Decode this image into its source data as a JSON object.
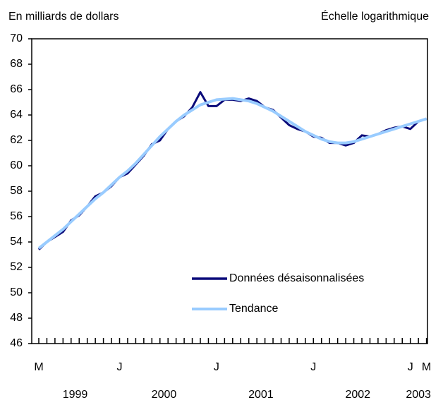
{
  "chart_data": {
    "type": "line",
    "y_label": "En milliards de dollars",
    "scale_note": "Échelle logarithmique",
    "categories": [
      "M",
      null,
      null,
      null,
      null,
      null,
      null,
      null,
      null,
      null,
      "J",
      null,
      null,
      null,
      null,
      null,
      null,
      null,
      null,
      null,
      null,
      null,
      "J",
      null,
      null,
      null,
      null,
      null,
      null,
      null,
      null,
      null,
      null,
      null,
      "J",
      null,
      null,
      null,
      null,
      null,
      null,
      null,
      null,
      null,
      null,
      null,
      "J",
      null,
      "M"
    ],
    "year_labels": [
      "1999",
      "2000",
      "2001",
      "2002",
      "2003"
    ],
    "series": [
      {
        "name": "Données désaisonnalisées",
        "color": "#0a0a7a",
        "values": [
          53.4,
          54.0,
          54.4,
          54.8,
          55.7,
          56.1,
          56.8,
          57.6,
          57.9,
          58.4,
          59.1,
          59.4,
          60.1,
          60.8,
          61.7,
          62.0,
          62.9,
          63.5,
          63.9,
          64.6,
          65.8,
          64.7,
          64.7,
          65.2,
          65.2,
          65.1,
          65.3,
          65.1,
          64.6,
          64.4,
          63.8,
          63.2,
          62.9,
          62.7,
          62.3,
          62.2,
          61.8,
          61.8,
          61.6,
          61.8,
          62.4,
          62.3,
          62.5,
          62.8,
          63.0,
          63.1,
          62.9,
          63.5,
          63.7
        ]
      },
      {
        "name": "Tendance",
        "color": "#99ccff",
        "values": [
          53.5,
          54.0,
          54.5,
          55.0,
          55.6,
          56.2,
          56.8,
          57.4,
          57.9,
          58.5,
          59.1,
          59.6,
          60.2,
          60.9,
          61.6,
          62.3,
          62.9,
          63.5,
          64.0,
          64.4,
          64.8,
          65.0,
          65.2,
          65.25,
          65.3,
          65.2,
          65.1,
          64.9,
          64.6,
          64.3,
          63.9,
          63.5,
          63.1,
          62.7,
          62.4,
          62.1,
          61.9,
          61.8,
          61.8,
          61.9,
          62.1,
          62.3,
          62.5,
          62.7,
          62.9,
          63.1,
          63.3,
          63.5,
          63.7
        ]
      }
    ],
    "ylim": [
      46,
      70
    ],
    "yticks": [
      46,
      48,
      50,
      52,
      54,
      56,
      58,
      60,
      62,
      64,
      66,
      68,
      70
    ]
  }
}
